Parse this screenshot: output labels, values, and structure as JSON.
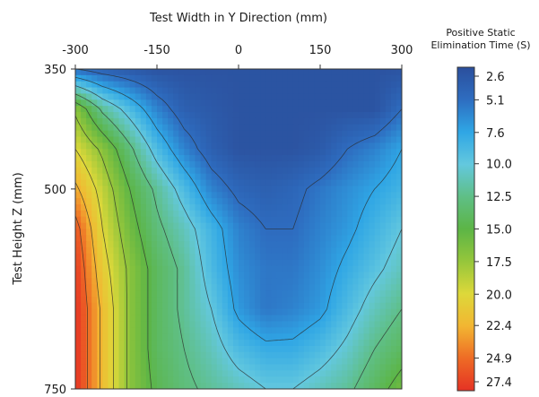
{
  "chart_data": {
    "type": "heatmap",
    "title": "",
    "xlabel": "Test Width in Y Direction (mm)",
    "ylabel": "Test Height  Z (mm)",
    "x_ticks": [
      -300,
      -150,
      0,
      150,
      300
    ],
    "y_ticks": [
      350,
      500,
      750
    ],
    "xlim": [
      -300,
      300
    ],
    "ylim": [
      350,
      750
    ],
    "x_axis_position": "top",
    "y_axis_inverted": true,
    "grid": false,
    "colorbar": {
      "title_line1": "Positive Static",
      "title_line2": "Elimination Time (S)",
      "placement": "right",
      "range": [
        2.6,
        27.4
      ],
      "tick_values": [
        2.6,
        5.1,
        7.6,
        10.0,
        12.5,
        15.0,
        17.5,
        20.0,
        22.4,
        24.9,
        27.4
      ],
      "tick_labels": [
        "2.6",
        "5.1",
        "7.6",
        "10.0",
        "12.5",
        "15.0",
        "17.5",
        "20.0",
        "22.4",
        "24.9",
        "27.4"
      ],
      "colors": [
        "#2B4F9C",
        "#2E6DC0",
        "#2FA6E5",
        "#63C8DE",
        "#5FBF86",
        "#5CB546",
        "#95C63B",
        "#DDD83A",
        "#F2B632",
        "#EE6B25",
        "#E53224"
      ]
    },
    "grid_x": [
      -300,
      -250,
      -200,
      -150,
      -100,
      -50,
      0,
      50,
      100,
      150,
      200,
      250,
      300
    ],
    "grid_y": [
      350,
      400,
      450,
      500,
      550,
      600,
      650,
      700,
      750
    ],
    "z": [
      [
        5,
        4,
        3.5,
        3,
        3,
        3,
        3,
        3,
        3,
        3,
        3,
        3,
        3
      ],
      [
        17,
        12,
        9,
        6,
        4,
        3.5,
        3,
        3,
        3,
        3,
        3,
        3,
        5
      ],
      [
        20,
        17,
        13,
        9,
        6,
        4,
        3,
        3,
        3,
        3.5,
        5,
        6,
        7.5
      ],
      [
        23,
        19,
        15,
        12,
        9,
        6,
        4.5,
        4,
        4.5,
        5.5,
        6.5,
        7.5,
        8.5
      ],
      [
        26,
        20,
        16,
        13,
        11,
        8.5,
        6,
        5,
        5,
        6,
        7,
        8.5,
        10
      ],
      [
        27,
        21,
        17,
        14,
        12,
        9,
        6.5,
        5.5,
        5.5,
        6.5,
        8,
        9.5,
        11
      ],
      [
        27.4,
        22,
        17,
        14,
        12,
        10,
        7,
        5.5,
        6,
        7,
        9,
        11,
        12.5
      ],
      [
        27.4,
        22,
        17,
        14,
        12.5,
        11,
        9,
        8,
        8,
        9,
        10.5,
        12.5,
        14
      ],
      [
        27.4,
        22,
        17,
        14.5,
        13,
        12,
        11,
        10,
        10,
        11,
        12,
        14,
        16
      ]
    ]
  }
}
